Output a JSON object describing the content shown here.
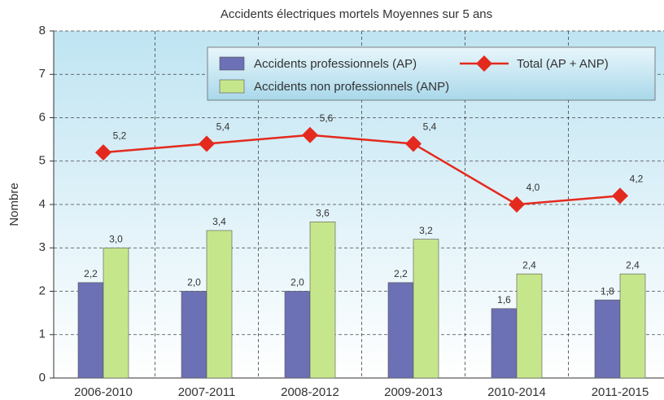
{
  "chart_data": {
    "type": "bar",
    "title": "Accidents électriques mortels Moyennes sur 5 ans",
    "y_label": "Nombre",
    "categories": [
      "2006-2010",
      "2007-2011",
      "2008-2012",
      "2009-2013",
      "2010-2014",
      "2011-2015"
    ],
    "series": [
      {
        "name": "Accidents professionnels (AP)",
        "type": "bar",
        "color": "#6c70b4",
        "values": [
          2.2,
          2.0,
          2.0,
          2.2,
          1.6,
          1.8
        ],
        "value_labels": [
          "2,2",
          "2,0",
          "2,0",
          "2,2",
          "1,6",
          "1,8"
        ]
      },
      {
        "name": "Accidents non professionnels (ANP)",
        "type": "bar",
        "color": "#c6e68c",
        "values": [
          3.0,
          3.4,
          3.6,
          3.2,
          2.4,
          2.4
        ],
        "value_labels": [
          "3,0",
          "3,4",
          "3,6",
          "3,2",
          "2,4",
          "2,4"
        ]
      },
      {
        "name": "Total (AP + ANP)",
        "type": "line",
        "color": "#e42a1e",
        "values": [
          5.2,
          5.4,
          5.6,
          5.4,
          4.0,
          4.2
        ],
        "value_labels": [
          "5,2",
          "5,4",
          "5,6",
          "5,4",
          "4,0",
          "4,2"
        ]
      }
    ],
    "ylim": [
      0,
      8
    ],
    "yticks": [
      0,
      1,
      2,
      3,
      4,
      5,
      6,
      7,
      8
    ],
    "grid": true
  }
}
